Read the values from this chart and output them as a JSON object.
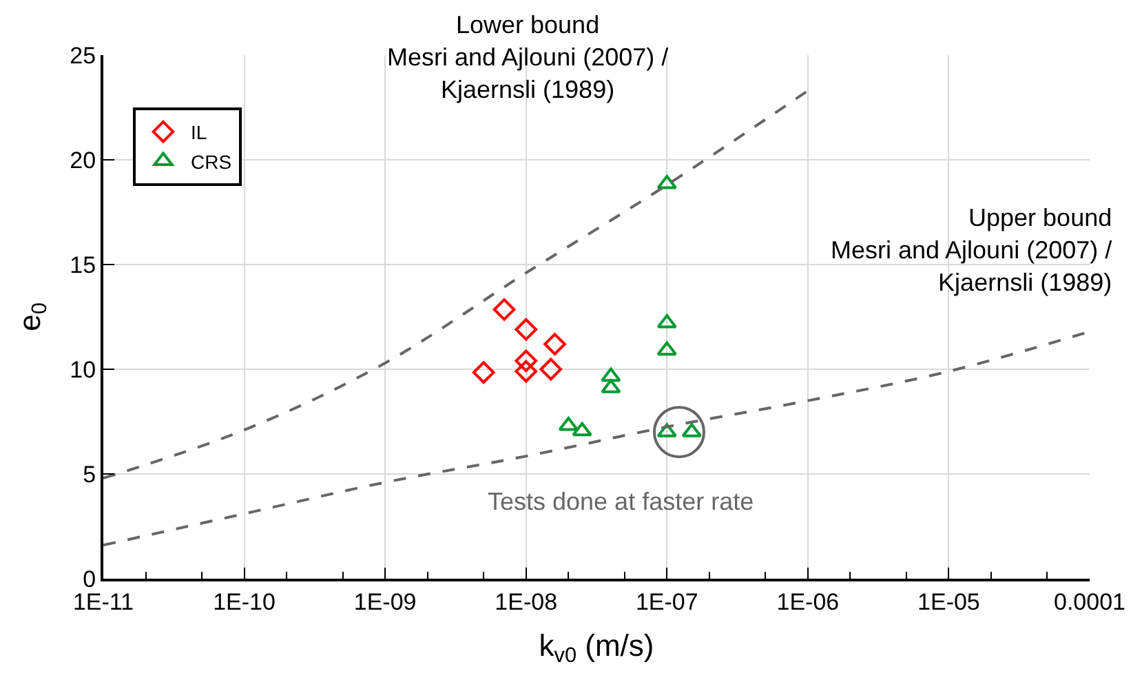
{
  "chart_data": {
    "type": "scatter",
    "xlabel": "k$_{v0}$ (m/s)",
    "ylabel": "e$_{0}$",
    "log": "x",
    "xlim": [
      1e-11,
      0.0001
    ],
    "ylim": [
      0,
      25
    ],
    "xticks": [
      {
        "value": 1e-11,
        "label": "1E-11"
      },
      {
        "value": 1e-10,
        "label": "1E-10"
      },
      {
        "value": 1e-09,
        "label": "1E-09"
      },
      {
        "value": 1e-08,
        "label": "1E-08"
      },
      {
        "value": 1e-07,
        "label": "1E-07"
      },
      {
        "value": 1e-06,
        "label": "1E-06"
      },
      {
        "value": 1e-05,
        "label": "1E-05"
      },
      {
        "value": 0.0001,
        "label": "0.0001"
      }
    ],
    "yticks": [
      0,
      5,
      10,
      15,
      20,
      25
    ],
    "grid": true,
    "legend": "top left",
    "series": [
      {
        "name": "IL",
        "color": "#ff0000",
        "marker": "diamond",
        "x": [
          7e-09,
          1e-08,
          1.6e-08,
          1e-08,
          1e-08,
          5e-09,
          1.5e-08
        ],
        "values": [
          12.85,
          11.9,
          11.2,
          10.4,
          9.9,
          9.85,
          10.0
        ]
      },
      {
        "name": "CRS",
        "color": "#009933",
        "marker": "triangle",
        "x": [
          1e-07,
          1e-07,
          1e-07,
          4e-08,
          4e-08,
          2e-08,
          2.5e-08,
          1e-07,
          1.5e-07
        ],
        "values": [
          18.85,
          12.2,
          10.9,
          9.65,
          9.1,
          7.3,
          7.05,
          7.0,
          7.0
        ]
      },
      {
        "type": "line",
        "color": "#666666",
        "line_style": "dashed",
        "marker": "none",
        "x": [
          1e-11,
          1e-10,
          1e-09,
          1e-08,
          1e-07,
          1e-06
        ],
        "values": [
          4.8,
          7.1,
          10.3,
          14.6,
          18.8,
          23.3
        ]
      },
      {
        "type": "line",
        "color": "#666666",
        "line_style": "dashed",
        "marker": "none",
        "x": [
          1e-11,
          1e-10,
          1e-09,
          1e-08,
          1e-07,
          1e-06,
          1e-05,
          0.0001
        ],
        "values": [
          1.6,
          3.1,
          4.6,
          5.85,
          7.25,
          8.5,
          9.9,
          11.8
        ]
      }
    ],
    "annotations": [
      "Lower bound\nMesri and Ajlouni (2007) /\nKjaernsli (1989)",
      "Upper bound\nMesri and Ajlouni (2007) /\nKjaernsli (1989)",
      {
        "text": "Tests done at faster rate",
        "x": 1.22e-07,
        "y": 7.0
      }
    ]
  }
}
